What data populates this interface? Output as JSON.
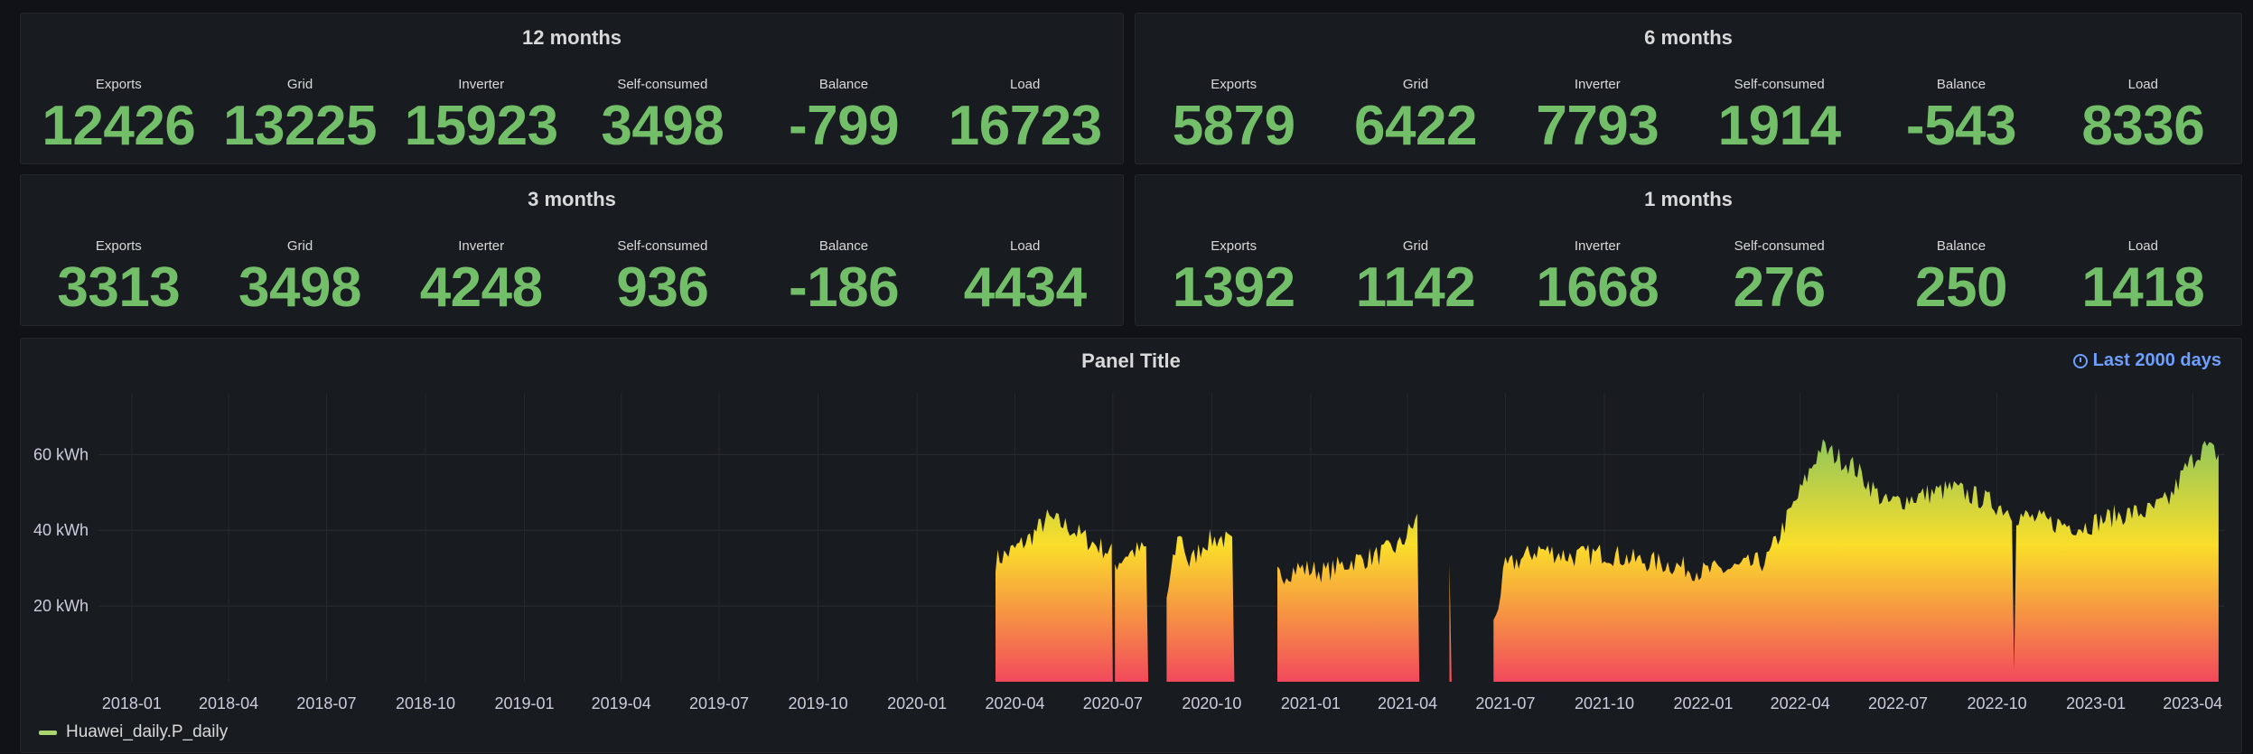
{
  "stat_panels": [
    {
      "title": "12 months",
      "stats": [
        {
          "label": "Exports",
          "value": "12426"
        },
        {
          "label": "Grid",
          "value": "13225"
        },
        {
          "label": "Inverter",
          "value": "15923"
        },
        {
          "label": "Self-consumed",
          "value": "3498"
        },
        {
          "label": "Balance",
          "value": "-799"
        },
        {
          "label": "Load",
          "value": "16723"
        }
      ]
    },
    {
      "title": "6 months",
      "stats": [
        {
          "label": "Exports",
          "value": "5879"
        },
        {
          "label": "Grid",
          "value": "6422"
        },
        {
          "label": "Inverter",
          "value": "7793"
        },
        {
          "label": "Self-consumed",
          "value": "1914"
        },
        {
          "label": "Balance",
          "value": "-543"
        },
        {
          "label": "Load",
          "value": "8336"
        }
      ]
    },
    {
      "title": "3 months",
      "stats": [
        {
          "label": "Exports",
          "value": "3313"
        },
        {
          "label": "Grid",
          "value": "3498"
        },
        {
          "label": "Inverter",
          "value": "4248"
        },
        {
          "label": "Self-consumed",
          "value": "936"
        },
        {
          "label": "Balance",
          "value": "-186"
        },
        {
          "label": "Load",
          "value": "4434"
        }
      ]
    },
    {
      "title": "1 months",
      "stats": [
        {
          "label": "Exports",
          "value": "1392"
        },
        {
          "label": "Grid",
          "value": "1142"
        },
        {
          "label": "Inverter",
          "value": "1668"
        },
        {
          "label": "Self-consumed",
          "value": "276"
        },
        {
          "label": "Balance",
          "value": "250"
        },
        {
          "label": "Load",
          "value": "1418"
        }
      ]
    }
  ],
  "chart_panel": {
    "title": "Panel Title",
    "time_range": "Last 2000 days",
    "time_range_icon": "clock-icon",
    "legend": [
      {
        "name": "Huawei_daily.P_daily",
        "color": "#a8d56e"
      }
    ]
  },
  "colors": {
    "stat_value": "#73bf69",
    "gradient": [
      "#f2495c",
      "#fade2a",
      "#73bf69"
    ],
    "time_range": "#6e9fff"
  },
  "chart_data": {
    "type": "area",
    "title": "Panel Title",
    "xlabel": "",
    "ylabel": "",
    "y_unit": "kWh",
    "ylim": [
      0,
      72
    ],
    "y_ticks": [
      {
        "value": 20,
        "label": "20 kWh"
      },
      {
        "value": 40,
        "label": "40 kWh"
      },
      {
        "value": 60,
        "label": "60 kWh"
      }
    ],
    "x_ticks": [
      "2018-01",
      "2018-04",
      "2018-07",
      "2018-10",
      "2019-01",
      "2019-04",
      "2019-07",
      "2019-10",
      "2020-01",
      "2020-04",
      "2020-07",
      "2020-10",
      "2021-01",
      "2021-04",
      "2021-07",
      "2021-10",
      "2022-01",
      "2022-04",
      "2022-07",
      "2022-10",
      "2023-01",
      "2023-04"
    ],
    "grid": true,
    "legend_position": "bottom-left",
    "series": [
      {
        "name": "Huawei_daily.P_daily",
        "color_mode": "gradient-by-value",
        "segments": [
          {
            "points": [
              [
                "2020-03-14",
                32
              ],
              [
                "2020-04-01",
                35
              ],
              [
                "2020-04-15",
                38
              ],
              [
                "2020-05-01",
                43
              ],
              [
                "2020-05-20",
                41
              ],
              [
                "2020-06-10",
                37
              ],
              [
                "2020-06-30",
                34
              ],
              [
                "2020-07-01",
                0
              ]
            ]
          },
          {
            "points": [
              [
                "2020-07-03",
                31
              ],
              [
                "2020-07-15",
                34
              ],
              [
                "2020-08-01",
                35
              ],
              [
                "2020-08-03",
                0
              ]
            ]
          },
          {
            "points": [
              [
                "2020-08-20",
                22
              ],
              [
                "2020-09-01",
                40
              ],
              [
                "2020-09-10",
                31
              ],
              [
                "2020-09-25",
                37
              ],
              [
                "2020-10-10",
                38
              ],
              [
                "2020-10-20",
                36
              ],
              [
                "2020-10-22",
                0
              ]
            ]
          },
          {
            "points": [
              [
                "2020-12-01",
                28
              ],
              [
                "2020-12-20",
                30
              ],
              [
                "2021-01-15",
                29
              ],
              [
                "2021-02-10",
                32
              ],
              [
                "2021-03-01",
                33
              ],
              [
                "2021-03-25",
                36
              ],
              [
                "2021-04-10",
                43
              ],
              [
                "2021-04-12",
                0
              ]
            ]
          },
          {
            "points": [
              [
                "2021-05-10",
                32
              ],
              [
                "2021-05-12",
                0
              ]
            ]
          },
          {
            "points": [
              [
                "2021-06-20",
                15
              ],
              [
                "2021-07-01",
                30
              ],
              [
                "2021-08-01",
                35
              ],
              [
                "2021-09-01",
                33
              ],
              [
                "2021-10-01",
                34
              ],
              [
                "2021-11-01",
                32
              ],
              [
                "2021-12-01",
                31
              ],
              [
                "2022-01-01",
                29
              ],
              [
                "2022-02-01",
                30
              ],
              [
                "2022-03-01",
                32
              ],
              [
                "2022-04-01",
                50
              ],
              [
                "2022-04-20",
                62
              ],
              [
                "2022-05-20",
                57
              ],
              [
                "2022-06-20",
                47
              ],
              [
                "2022-07-20",
                49
              ],
              [
                "2022-08-20",
                51
              ],
              [
                "2022-09-20",
                48
              ],
              [
                "2022-10-15",
                45
              ],
              [
                "2022-10-17",
                3
              ],
              [
                "2022-10-19",
                44
              ],
              [
                "2022-11-20",
                42
              ],
              [
                "2022-12-20",
                41
              ],
              [
                "2023-01-20",
                44
              ],
              [
                "2023-02-20",
                45
              ],
              [
                "2023-03-10",
                48
              ],
              [
                "2023-03-25",
                56
              ],
              [
                "2023-04-10",
                62
              ],
              [
                "2023-04-25",
                60
              ]
            ]
          }
        ]
      }
    ]
  }
}
